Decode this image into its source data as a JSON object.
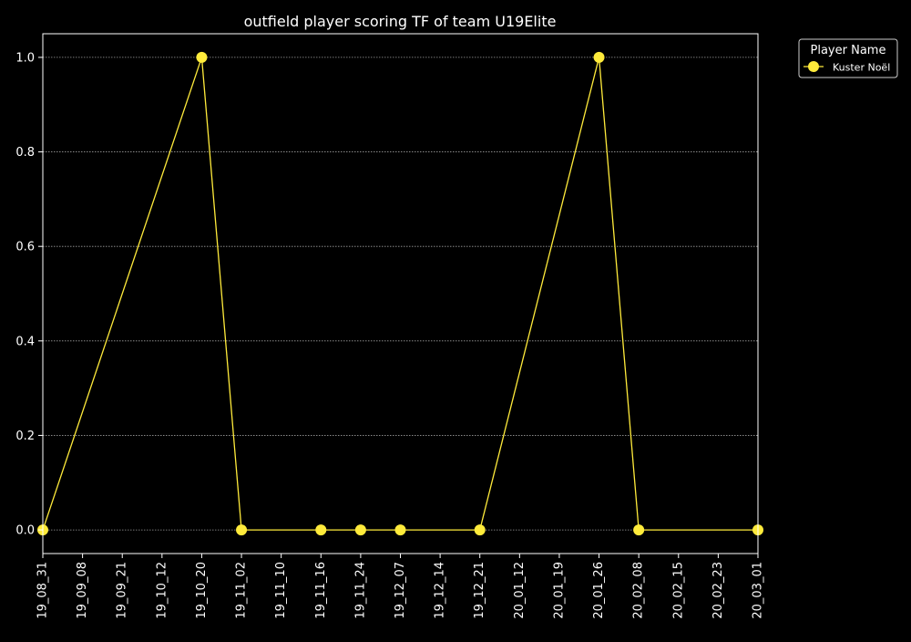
{
  "chart_data": {
    "type": "line",
    "title": "outfield player scoring TF of team U19Elite",
    "xlabel": "",
    "ylabel": "",
    "categories": [
      "19_08_31",
      "19_09_08",
      "19_09_21",
      "19_10_12",
      "19_10_20",
      "19_11_02",
      "19_11_10",
      "19_11_16",
      "19_11_24",
      "19_12_07",
      "19_12_14",
      "19_12_21",
      "20_01_12",
      "20_01_19",
      "20_01_26",
      "20_02_08",
      "20_02_15",
      "20_02_23",
      "20_03_01"
    ],
    "y_ticks": [
      "0.0",
      "0.2",
      "0.4",
      "0.6",
      "0.8",
      "1.0"
    ],
    "ylim": [
      -0.05,
      1.05
    ],
    "grid": true,
    "legend": {
      "title": "Player Name",
      "placement": "outside-top-right"
    },
    "series": [
      {
        "name": "Kuster Noël",
        "color": "#ffeb3b",
        "marker": "circle",
        "points": [
          {
            "x": "19_08_31",
            "y": 0
          },
          {
            "x": "19_10_20",
            "y": 1
          },
          {
            "x": "19_11_02",
            "y": 0
          },
          {
            "x": "19_11_16",
            "y": 0
          },
          {
            "x": "19_11_24",
            "y": 0
          },
          {
            "x": "19_12_07",
            "y": 0
          },
          {
            "x": "19_12_21",
            "y": 0
          },
          {
            "x": "20_01_26",
            "y": 1
          },
          {
            "x": "20_02_08",
            "y": 0
          },
          {
            "x": "20_03_01",
            "y": 0
          }
        ]
      }
    ],
    "colors": {
      "background": "#000000",
      "axes": "#ffffff",
      "grid": "#9e9e9e",
      "text": "#ffffff"
    }
  }
}
